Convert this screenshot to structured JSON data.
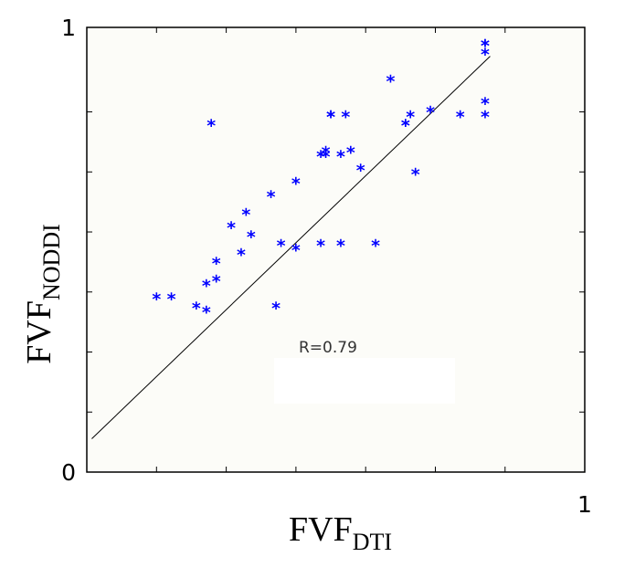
{
  "chart_data": {
    "type": "scatter",
    "title": "",
    "xlabel": "FVF",
    "xlabel_sub": "DTI",
    "ylabel": "FVF",
    "ylabel_sub": "NODDI",
    "xlim": [
      0,
      1
    ],
    "ylim": [
      0,
      1
    ],
    "x_tick_labels": [
      {
        "value": 1,
        "label": "1"
      }
    ],
    "y_tick_labels": [
      {
        "value": 0,
        "label": "0"
      },
      {
        "value": 1,
        "label": "1"
      }
    ],
    "marker_color": "#0000ff",
    "fit_line": {
      "x": [
        0.01,
        0.81
      ],
      "y": [
        0.075,
        0.935
      ]
    },
    "annotation": "R=0.79",
    "series": [
      {
        "marker": "*",
        "x": [
          0.14,
          0.17,
          0.22,
          0.24,
          0.24,
          0.26,
          0.26,
          0.25,
          0.29,
          0.31,
          0.32,
          0.33,
          0.37,
          0.38,
          0.39,
          0.42,
          0.42,
          0.47,
          0.47,
          0.48,
          0.48,
          0.49,
          0.49,
          0.51,
          0.51,
          0.52,
          0.53,
          0.55,
          0.58,
          0.61,
          0.64,
          0.64,
          0.65,
          0.66,
          0.69,
          0.75,
          0.8,
          0.8,
          0.8,
          0.8,
          0.8
        ],
        "y": [
          0.39,
          0.39,
          0.37,
          0.36,
          0.42,
          0.43,
          0.47,
          0.78,
          0.55,
          0.49,
          0.58,
          0.53,
          0.62,
          0.37,
          0.51,
          0.5,
          0.65,
          0.51,
          0.71,
          0.71,
          0.72,
          0.8,
          0.8,
          0.71,
          0.51,
          0.8,
          0.72,
          0.68,
          0.51,
          0.88,
          0.78,
          0.78,
          0.8,
          0.67,
          0.81,
          0.8,
          0.8,
          0.83,
          0.94,
          0.96,
          0.96
        ]
      }
    ]
  }
}
